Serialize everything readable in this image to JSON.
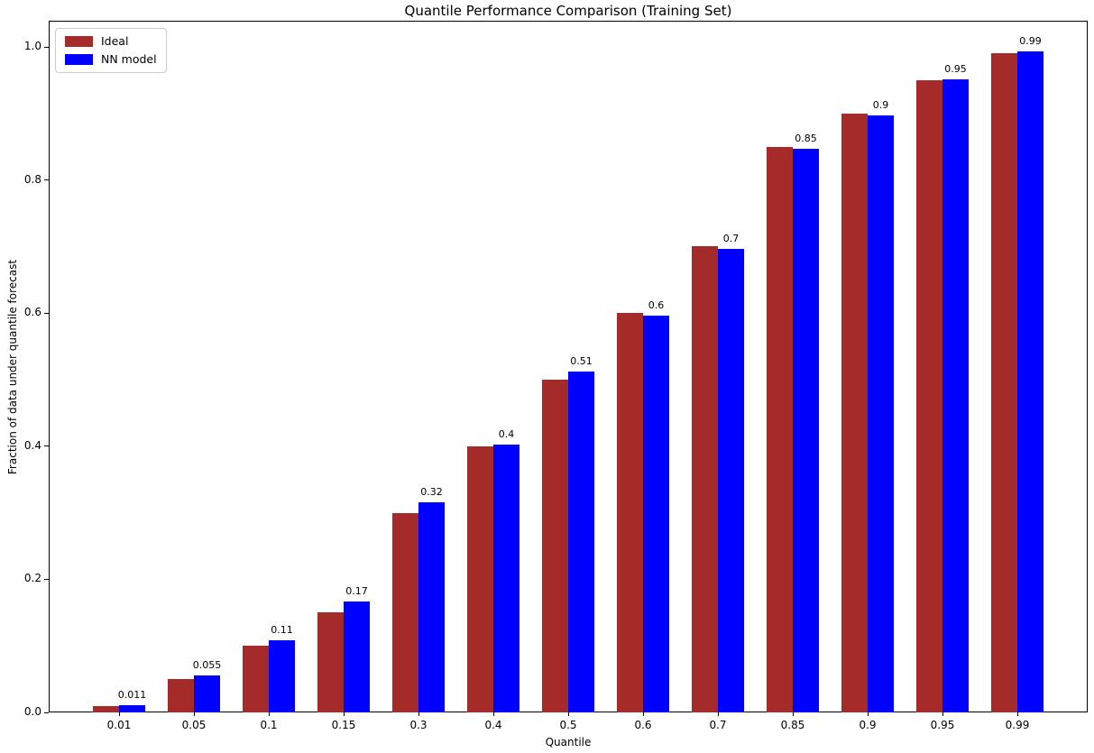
{
  "figure": {
    "background": "#ffffff",
    "spine_color": "#000000",
    "text_color": "#000000"
  },
  "chart_data": {
    "type": "bar",
    "title": "Quantile Performance Comparison (Training Set)",
    "xlabel": "Quantile",
    "ylabel": "Fraction of data under quantile forecast",
    "categories": [
      "0.01",
      "0.05",
      "0.1",
      "0.15",
      "0.3",
      "0.4",
      "0.5",
      "0.6",
      "0.7",
      "0.85",
      "0.9",
      "0.95",
      "0.99"
    ],
    "series": [
      {
        "name": "Ideal",
        "color": "#a52a2a",
        "values": [
          0.01,
          0.05,
          0.1,
          0.15,
          0.3,
          0.4,
          0.5,
          0.6,
          0.7,
          0.85,
          0.9,
          0.95,
          0.99
        ]
      },
      {
        "name": "NN model",
        "color": "#0000ff",
        "values": [
          0.011,
          0.055,
          0.108,
          0.166,
          0.316,
          0.403,
          0.512,
          0.596,
          0.697,
          0.847,
          0.897,
          0.951,
          0.993
        ],
        "bar_labels": [
          "0.011",
          "0.055",
          "0.11",
          "0.17",
          "0.32",
          "0.4",
          "0.51",
          "0.6",
          "0.7",
          "0.85",
          "0.9",
          "0.95",
          "0.99"
        ]
      }
    ],
    "yticks": [
      "0.0",
      "0.2",
      "0.4",
      "0.6",
      "0.8",
      "1.0"
    ],
    "ylim": [
      0.0,
      1.039
    ],
    "grid": false,
    "legend_position": "upper left",
    "legend_entries": [
      "Ideal",
      "NN model"
    ]
  }
}
